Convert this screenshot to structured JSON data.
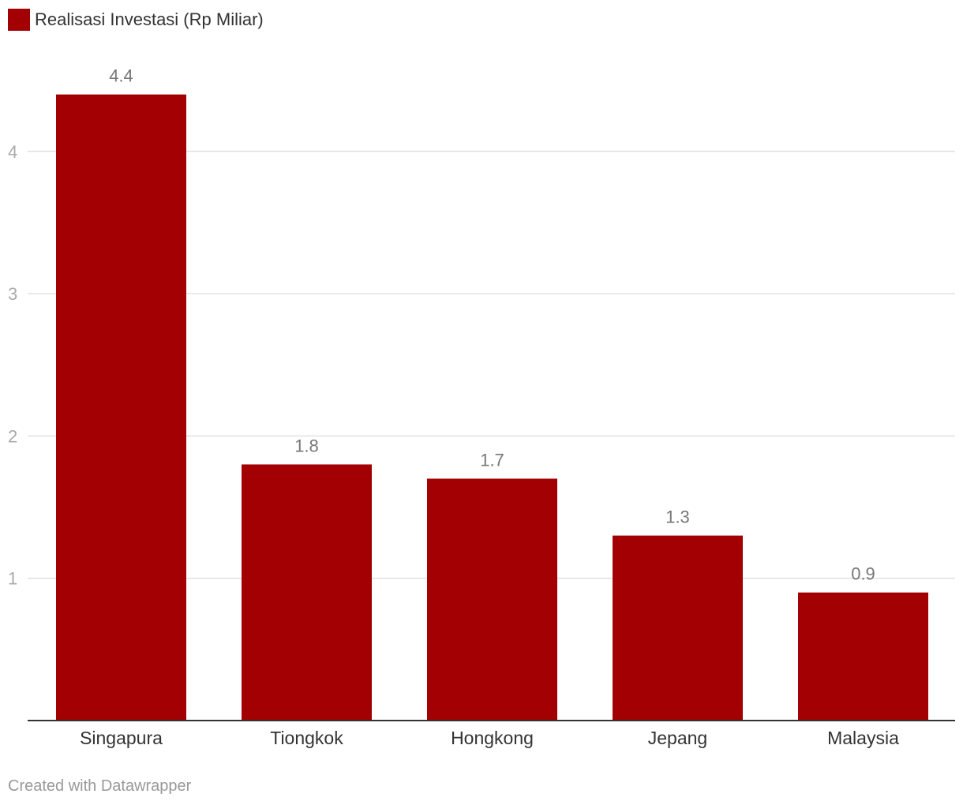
{
  "legend": {
    "label": "Realisasi Investasi (Rp Miliar)",
    "color": "#a30003"
  },
  "credit": "Created with Datawrapper",
  "colors": {
    "bar": "#a30003",
    "grid": "#e0e0e0",
    "axis": "#333333",
    "tick_label": "#aaaaaa",
    "value_label": "#777777",
    "category_label": "#333333"
  },
  "chart_data": {
    "type": "bar",
    "categories": [
      "Singapura",
      "Tiongkok",
      "Hongkong",
      "Jepang",
      "Malaysia"
    ],
    "series": [
      {
        "name": "Realisasi Investasi (Rp Miliar)",
        "values": [
          4.4,
          1.8,
          1.7,
          1.3,
          0.9
        ]
      }
    ],
    "value_labels": [
      "4.4",
      "1.8",
      "1.7",
      "1.3",
      "0.9"
    ],
    "y_ticks": [
      1,
      2,
      3,
      4
    ],
    "ylim": [
      0,
      4.4
    ],
    "grid": true,
    "legend_position": "top-left",
    "title": "",
    "xlabel": "",
    "ylabel": ""
  }
}
